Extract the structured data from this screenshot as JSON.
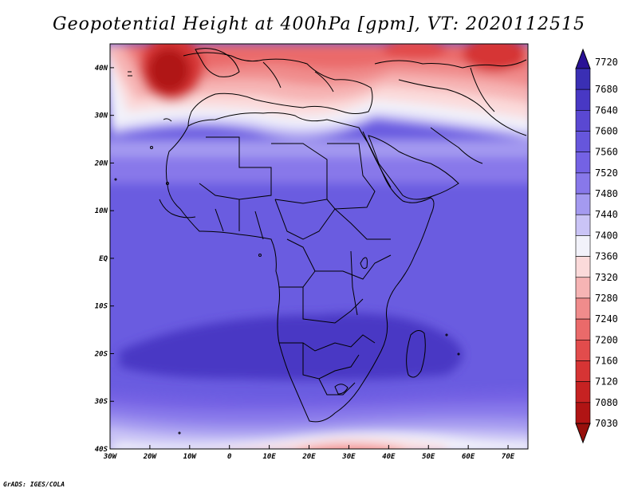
{
  "title": "Geopotential Height at 400hPa [gpm], VT: 2020112515",
  "credit": "GrADS: IGES/COLA",
  "map": {
    "lon_ticks": [
      "30W",
      "20W",
      "10W",
      "0",
      "10E",
      "20E",
      "30E",
      "40E",
      "50E",
      "60E",
      "70E"
    ],
    "lat_ticks": [
      "40N",
      "30N",
      "20N",
      "10N",
      "EQ",
      "10S",
      "20S",
      "30S",
      "40S"
    ],
    "lon_range": [
      -30,
      75
    ],
    "lat_range": [
      -40,
      45
    ]
  },
  "colorbar": {
    "levels": [
      "7720",
      "7680",
      "7640",
      "7600",
      "7560",
      "7520",
      "7480",
      "7440",
      "7400",
      "7360",
      "7320",
      "7280",
      "7240",
      "7200",
      "7160",
      "7120",
      "7080",
      "7030"
    ],
    "colors": [
      "#2a1296",
      "#3a2fb4",
      "#4838c4",
      "#5a48d2",
      "#6656dc",
      "#7462e4",
      "#8878ea",
      "#a49af0",
      "#cac4f6",
      "#f2f2fa",
      "#fbdada",
      "#f6b4b4",
      "#f08c8c",
      "#ea6a6a",
      "#e24c4c",
      "#d63434",
      "#c62222",
      "#b01414",
      "#98100c"
    ]
  },
  "colors": {
    "ocean_field": "#6a5ce0",
    "deep_low": "#4838c4",
    "high_lat_red": "#c62222",
    "white_band": "#f2f2fa"
  }
}
